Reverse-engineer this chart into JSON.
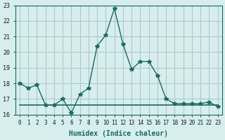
{
  "xlabel": "Humidex (Indice chaleur)",
  "ylabel": "",
  "x": [
    0,
    1,
    2,
    3,
    4,
    5,
    6,
    7,
    8,
    9,
    10,
    11,
    12,
    13,
    14,
    15,
    16,
    17,
    18,
    19,
    20,
    21,
    22,
    23
  ],
  "y_line1": [
    18.0,
    17.7,
    17.9,
    16.6,
    16.6,
    17.0,
    16.1,
    17.3,
    17.7,
    20.4,
    21.1,
    22.8,
    20.5,
    18.9,
    19.4,
    19.4,
    18.5,
    17.0,
    16.7,
    16.7,
    16.7,
    16.7,
    16.8,
    16.5
  ],
  "y_line2": [
    16.6,
    16.6,
    16.6,
    16.6,
    16.6,
    16.6,
    16.6,
    16.6,
    16.6,
    16.6,
    16.6,
    16.6,
    16.6,
    16.6,
    16.6,
    16.6,
    16.6,
    16.6,
    16.6,
    16.6,
    16.6,
    16.6,
    16.6,
    16.6
  ],
  "line_color": "#1a6b5a",
  "bg_color": "#d6eeee",
  "grid_color": "#b0c8c8",
  "ylim": [
    16,
    23
  ],
  "yticks": [
    16,
    17,
    18,
    19,
    20,
    21,
    22,
    23
  ]
}
